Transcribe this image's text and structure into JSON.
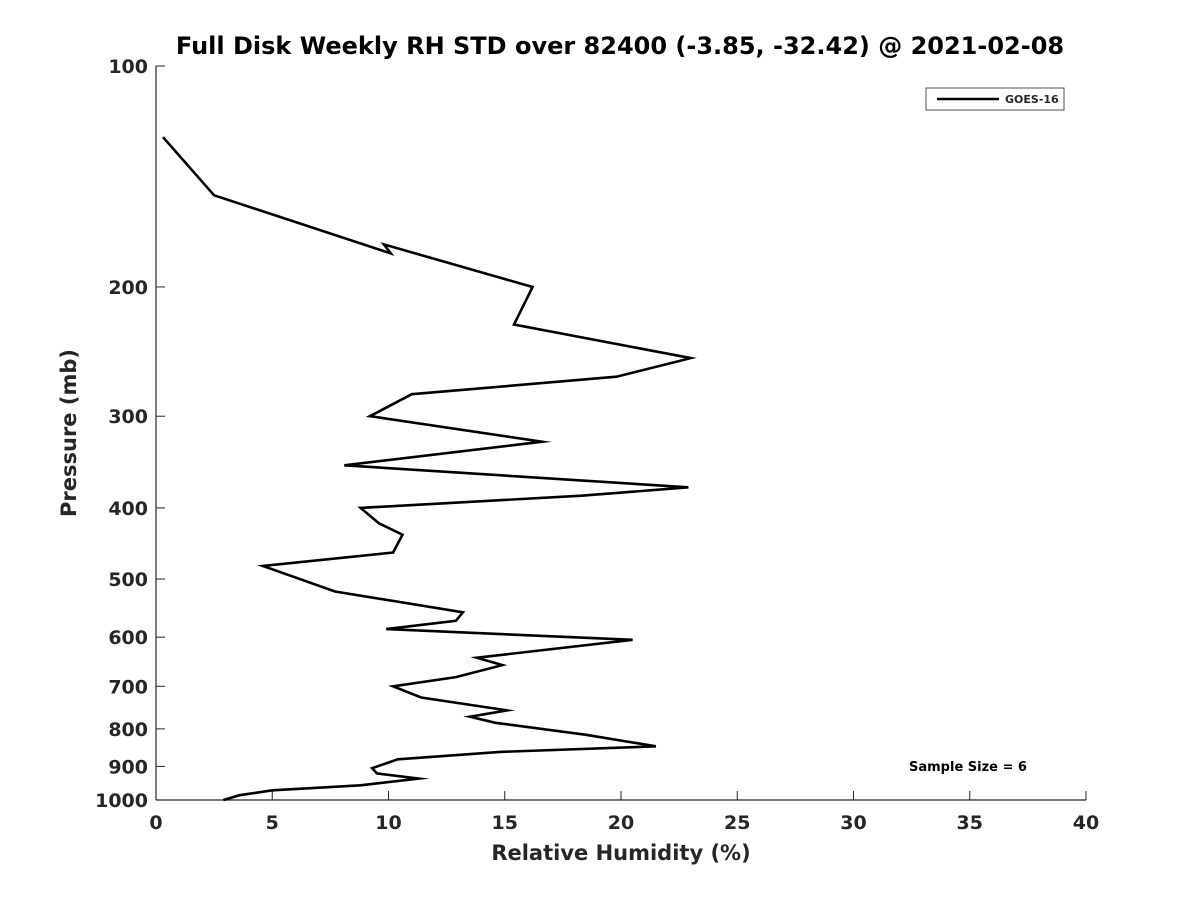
{
  "chart_data": {
    "type": "line",
    "title": "Full Disk Weekly RH STD over 82400 (-3.85, -32.42) @ 2021-02-08",
    "xlabel": "Relative Humidity (%)",
    "ylabel": "Pressure (mb)",
    "xlim": [
      0,
      40
    ],
    "ylim": [
      100,
      1000
    ],
    "y_scale": "log",
    "y_reversed": true,
    "grid": false,
    "legend_position": "top-right",
    "x_ticks": [
      "0",
      "5",
      "10",
      "15",
      "20",
      "25",
      "30",
      "35",
      "40"
    ],
    "x_tick_values": [
      0,
      5,
      10,
      15,
      20,
      25,
      30,
      35,
      40
    ],
    "y_ticks": [
      "100",
      "200",
      "300",
      "400",
      "500",
      "600",
      "700",
      "800",
      "900",
      "1000"
    ],
    "y_tick_values": [
      100,
      200,
      300,
      400,
      500,
      600,
      700,
      800,
      900,
      1000
    ],
    "series": [
      {
        "name": "GOES-16",
        "color": "#000000",
        "points": [
          [
            0.3,
            125
          ],
          [
            2.5,
            150
          ],
          [
            10.1,
            180
          ],
          [
            9.8,
            175
          ],
          [
            16.2,
            200
          ],
          [
            15.4,
            225
          ],
          [
            23.0,
            250
          ],
          [
            19.8,
            265
          ],
          [
            11.0,
            280
          ],
          [
            9.2,
            300
          ],
          [
            16.6,
            325
          ],
          [
            8.1,
            350
          ],
          [
            22.9,
            375
          ],
          [
            18.3,
            385
          ],
          [
            8.8,
            400
          ],
          [
            9.6,
            420
          ],
          [
            10.6,
            435
          ],
          [
            10.2,
            460
          ],
          [
            4.6,
            480
          ],
          [
            7.7,
            520
          ],
          [
            13.2,
            555
          ],
          [
            12.9,
            570
          ],
          [
            9.9,
            585
          ],
          [
            20.5,
            605
          ],
          [
            13.8,
            640
          ],
          [
            14.9,
            655
          ],
          [
            12.9,
            680
          ],
          [
            10.2,
            700
          ],
          [
            11.4,
            725
          ],
          [
            15.1,
            755
          ],
          [
            13.5,
            770
          ],
          [
            14.6,
            785
          ],
          [
            18.5,
            815
          ],
          [
            21.5,
            845
          ],
          [
            14.8,
            860
          ],
          [
            10.4,
            880
          ],
          [
            9.3,
            905
          ],
          [
            9.5,
            920
          ],
          [
            11.3,
            935
          ],
          [
            8.8,
            955
          ],
          [
            5.0,
            970
          ],
          [
            3.6,
            985
          ],
          [
            2.9,
            1000
          ]
        ]
      }
    ],
    "annotation": "Sample Size = 6"
  }
}
